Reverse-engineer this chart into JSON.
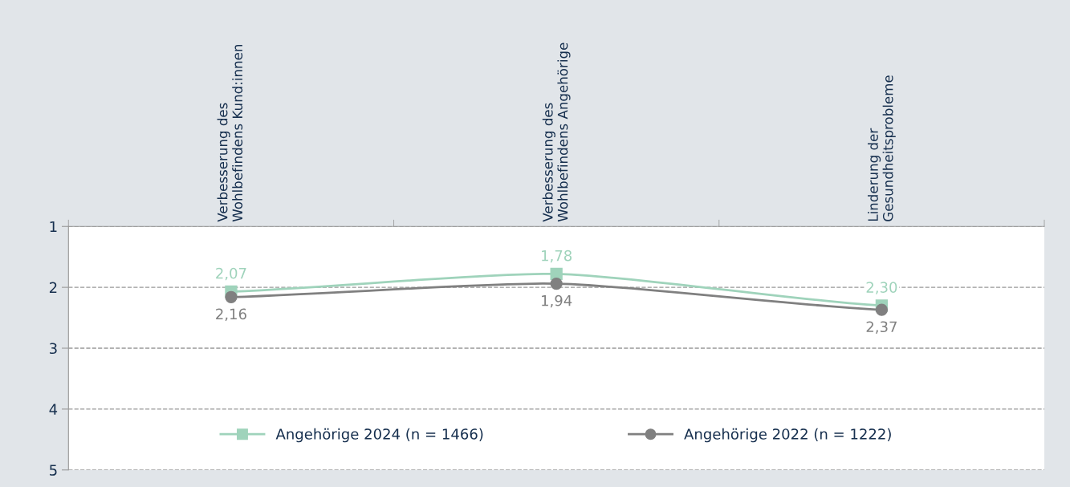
{
  "chart_data": {
    "type": "line",
    "categories": [
      "Verbesserung des\nWohlbefindens Kund:innen",
      "Verbesserung des\nWohlbefindens Angehörige",
      "Linderung der\nGesundheitsprobleme"
    ],
    "series": [
      {
        "name": "Angehörige 2024 (n = 1466)",
        "color": "#9fd3bb",
        "marker": "square",
        "values": [
          2.07,
          1.78,
          2.3
        ],
        "value_labels": [
          "2,07",
          "1,78",
          "2,30"
        ]
      },
      {
        "name": "Angehörige 2022 (n = 1222)",
        "color": "#808080",
        "marker": "circle",
        "values": [
          2.16,
          1.94,
          2.37
        ],
        "value_labels": [
          "2,16",
          "1,94",
          "2,37"
        ]
      }
    ],
    "ylim": [
      5,
      1
    ],
    "yticks": [
      1,
      2,
      3,
      4,
      5
    ],
    "grid": "y",
    "legend": "bottom",
    "line_style": "solid"
  }
}
